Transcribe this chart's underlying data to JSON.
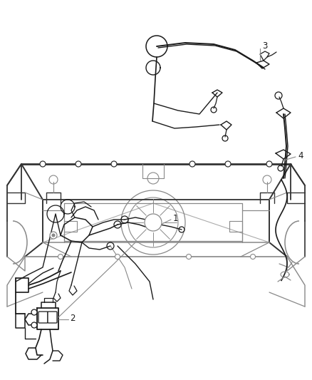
{
  "bg_color": "#ffffff",
  "line_color": "#1a1a1a",
  "gray_color": "#666666",
  "light_gray": "#999999",
  "dark_gray": "#333333",
  "mid_gray": "#888888",
  "fig_width": 4.38,
  "fig_height": 5.33,
  "dpi": 100,
  "label_fontsize": 8.5,
  "label_color": "#444444",
  "leader_color": "#888888"
}
